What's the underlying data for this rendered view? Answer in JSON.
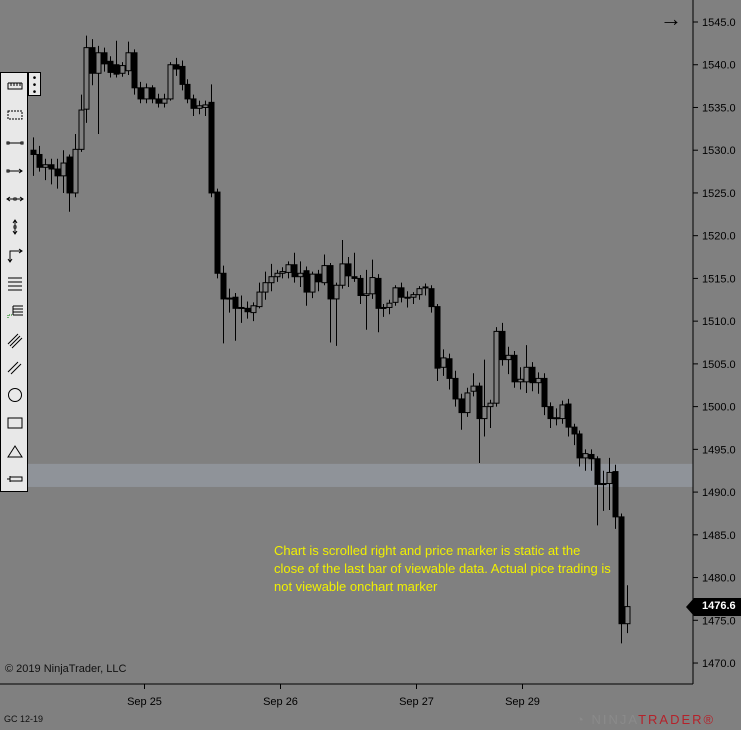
{
  "header": {
    "arrow_icon": "arrow-right-icon"
  },
  "toolbar": {
    "more_icon": "vertical-ellipsis-icon",
    "tools": [
      "ruler-icon",
      "region-select-icon",
      "line-icon",
      "ray-icon",
      "extended-line-icon",
      "vertical-measure-icon",
      "arrow-line-icon",
      "horizontal-lines-icon",
      "fibonacci-icon",
      "parallel-channel-icon",
      "trend-channel-icon",
      "ellipse-icon",
      "rectangle-icon",
      "triangle-icon",
      "price-marker-icon"
    ]
  },
  "annotation": {
    "text": "Chart is scrolled right and price marker is static at the close of the last bar of viewable data. Actual pice trading is not viewable onchart marker",
    "color": "#f0f000"
  },
  "copyright": "© 2019 NinjaTrader, LLC",
  "instrument": "GC 12-19",
  "logo": {
    "ninja": "NINJA",
    "trader": "TRADER",
    "reg": "®"
  },
  "price_marker": {
    "value": "1476.6"
  },
  "chart_data": {
    "type": "candlestick",
    "y_ticks": [
      "1545.0",
      "1540.0",
      "1535.0",
      "1530.0",
      "1525.0",
      "1520.0",
      "1515.0",
      "1510.0",
      "1505.0",
      "1500.0",
      "1495.0",
      "1490.0",
      "1485.0",
      "1480.0",
      "1475.0",
      "1470.0"
    ],
    "ylim": [
      1468.5,
      1547.5
    ],
    "x_labels": [
      "Sep 25",
      "Sep 26",
      "Sep 27",
      "Sep 29"
    ],
    "grid": false,
    "shaded_band": [
      1490.6,
      1493.3
    ],
    "colors": {
      "background": "#808080",
      "up_fill": "#808080",
      "down_fill": "#000000",
      "wick": "#000000",
      "band": "#8f9399"
    },
    "ohlc": [
      [
        1530,
        1531.5,
        1527,
        1529.5
      ],
      [
        1529.5,
        1530.5,
        1527.5,
        1528
      ],
      [
        1528,
        1529,
        1526.5,
        1528.3
      ],
      [
        1528.3,
        1529,
        1526,
        1527.8
      ],
      [
        1527.8,
        1529,
        1525.5,
        1527
      ],
      [
        1527,
        1530,
        1525,
        1528.5
      ],
      [
        1529.2,
        1529.5,
        1522.8,
        1525
      ],
      [
        1525,
        1531.9,
        1524.5,
        1530.1
      ],
      [
        1530.1,
        1536.5,
        1529.8,
        1534.7
      ],
      [
        1534.8,
        1543.4,
        1533.2,
        1542
      ],
      [
        1542,
        1543,
        1537.6,
        1539
      ],
      [
        1539,
        1542.2,
        1531.9,
        1541.4
      ],
      [
        1541.4,
        1542,
        1539.2,
        1540.1
      ],
      [
        1540.4,
        1541,
        1538.5,
        1539.1
      ],
      [
        1540,
        1542.8,
        1538.5,
        1538.9
      ],
      [
        1539,
        1540.3,
        1538.6,
        1539.9
      ],
      [
        1539.3,
        1542.7,
        1538.8,
        1541.4
      ],
      [
        1541.4,
        1541.8,
        1536.5,
        1537.3
      ],
      [
        1537.3,
        1538,
        1535.5,
        1536
      ],
      [
        1536,
        1537.8,
        1535.5,
        1537.3
      ],
      [
        1537.3,
        1537.6,
        1535.5,
        1536
      ],
      [
        1536,
        1536.6,
        1535,
        1535.5
      ],
      [
        1535.5,
        1536.6,
        1535,
        1536
      ],
      [
        1536,
        1540.3,
        1535.8,
        1540
      ],
      [
        1540,
        1540.8,
        1538.7,
        1539.5
      ],
      [
        1539.8,
        1540.5,
        1537,
        1537.7
      ],
      [
        1537.7,
        1538.3,
        1535.5,
        1536
      ],
      [
        1536,
        1536.5,
        1534,
        1534.9
      ],
      [
        1534.9,
        1535.8,
        1534.2,
        1535.2
      ],
      [
        1535,
        1535.8,
        1534,
        1535.3
      ],
      [
        1535.6,
        1537.7,
        1524.5,
        1525
      ],
      [
        1525.1,
        1525.5,
        1515,
        1515.6
      ],
      [
        1515.6,
        1516.5,
        1507.4,
        1512.6
      ],
      [
        1512.6,
        1513.8,
        1511,
        1512.7
      ],
      [
        1512.8,
        1513.3,
        1507.7,
        1511.5
      ],
      [
        1511.5,
        1513,
        1509.8,
        1511.6
      ],
      [
        1511.5,
        1512.3,
        1510.3,
        1511.1
      ],
      [
        1511,
        1512.2,
        1510,
        1511.8
      ],
      [
        1511.7,
        1514.5,
        1511.5,
        1513.4
      ],
      [
        1513.4,
        1515.8,
        1512.5,
        1514.5
      ],
      [
        1514.5,
        1516.7,
        1513.5,
        1515.2
      ],
      [
        1515.2,
        1516,
        1514.6,
        1515.6
      ],
      [
        1515.6,
        1516.3,
        1515,
        1515.8
      ],
      [
        1515.7,
        1517,
        1515,
        1516.6
      ],
      [
        1516.6,
        1518,
        1514.5,
        1515.2
      ],
      [
        1515.2,
        1517,
        1514,
        1515.6
      ],
      [
        1515.9,
        1516.4,
        1511.8,
        1513.4
      ],
      [
        1513.4,
        1515.8,
        1512.7,
        1515.5
      ],
      [
        1515.5,
        1516,
        1513.5,
        1514.6
      ],
      [
        1514.5,
        1517.8,
        1514.2,
        1516.5
      ],
      [
        1516.5,
        1516.8,
        1507.5,
        1512.6
      ],
      [
        1512.6,
        1514.5,
        1507.1,
        1514.2
      ],
      [
        1514.2,
        1519.5,
        1513.8,
        1516.7
      ],
      [
        1516.7,
        1517.5,
        1514,
        1515.3
      ],
      [
        1515.2,
        1518,
        1514.6,
        1515
      ],
      [
        1515,
        1515.4,
        1512,
        1513
      ],
      [
        1513,
        1516,
        1509,
        1513.2
      ],
      [
        1513.2,
        1517.2,
        1512.6,
        1515.1
      ],
      [
        1515,
        1515.5,
        1508.7,
        1511.5
      ],
      [
        1511.6,
        1512,
        1510.5,
        1511.6
      ],
      [
        1511.6,
        1512.5,
        1510.8,
        1512.1
      ],
      [
        1512.2,
        1514.2,
        1511.8,
        1513.9
      ],
      [
        1513.9,
        1514.5,
        1512.2,
        1512.8
      ],
      [
        1512.8,
        1513.5,
        1511.6,
        1512.8
      ],
      [
        1512.8,
        1513.4,
        1512,
        1513.1
      ],
      [
        1513.1,
        1514.1,
        1512.5,
        1513.8
      ],
      [
        1514,
        1514.4,
        1513,
        1514
      ],
      [
        1513.8,
        1514.2,
        1511,
        1511.7
      ],
      [
        1511.7,
        1512,
        1503,
        1504.5
      ],
      [
        1504.6,
        1506.7,
        1503.6,
        1505.7
      ],
      [
        1505.6,
        1506.2,
        1502,
        1503.3
      ],
      [
        1503.3,
        1504.2,
        1500,
        1500.9
      ],
      [
        1500.9,
        1501.5,
        1497.3,
        1499.3
      ],
      [
        1499.3,
        1502.2,
        1498.8,
        1501.6
      ],
      [
        1501.8,
        1503.9,
        1501.2,
        1502.4
      ],
      [
        1502.4,
        1502.8,
        1493.4,
        1498.6
      ],
      [
        1498.6,
        1505.5,
        1496.5,
        1500
      ],
      [
        1500,
        1500.8,
        1497.5,
        1500.4
      ],
      [
        1500.4,
        1509.3,
        1500,
        1508.8
      ],
      [
        1508.8,
        1509.8,
        1504.8,
        1505.5
      ],
      [
        1505.5,
        1507,
        1503.8,
        1506
      ],
      [
        1506,
        1506.5,
        1502.2,
        1502.9
      ],
      [
        1502.9,
        1504.6,
        1502,
        1503.2
      ],
      [
        1502.9,
        1507.2,
        1501.6,
        1504.6
      ],
      [
        1504.6,
        1505.2,
        1501.8,
        1502.8
      ],
      [
        1502.8,
        1504,
        1501.5,
        1503.3
      ],
      [
        1503.3,
        1503.9,
        1499,
        1500
      ],
      [
        1500,
        1500.5,
        1497.5,
        1498.6
      ],
      [
        1498.6,
        1499.8,
        1497.8,
        1498.7
      ],
      [
        1498.6,
        1500.7,
        1498,
        1500.2
      ],
      [
        1500.3,
        1500.9,
        1496.5,
        1497.6
      ],
      [
        1497.6,
        1498,
        1495.5,
        1496.8
      ],
      [
        1496.8,
        1497.2,
        1493,
        1494
      ],
      [
        1494,
        1495,
        1492.5,
        1494.5
      ],
      [
        1494.4,
        1495,
        1492.5,
        1493.9
      ],
      [
        1493.9,
        1494.2,
        1486.1,
        1490.9
      ],
      [
        1491,
        1492.5,
        1487.8,
        1491
      ],
      [
        1491,
        1494,
        1487.9,
        1492.3
      ],
      [
        1492.4,
        1493.2,
        1485.7,
        1487.1
      ],
      [
        1487.1,
        1487.5,
        1472.3,
        1474.6
      ],
      [
        1474.6,
        1479.1,
        1473.5,
        1476.6
      ]
    ]
  }
}
